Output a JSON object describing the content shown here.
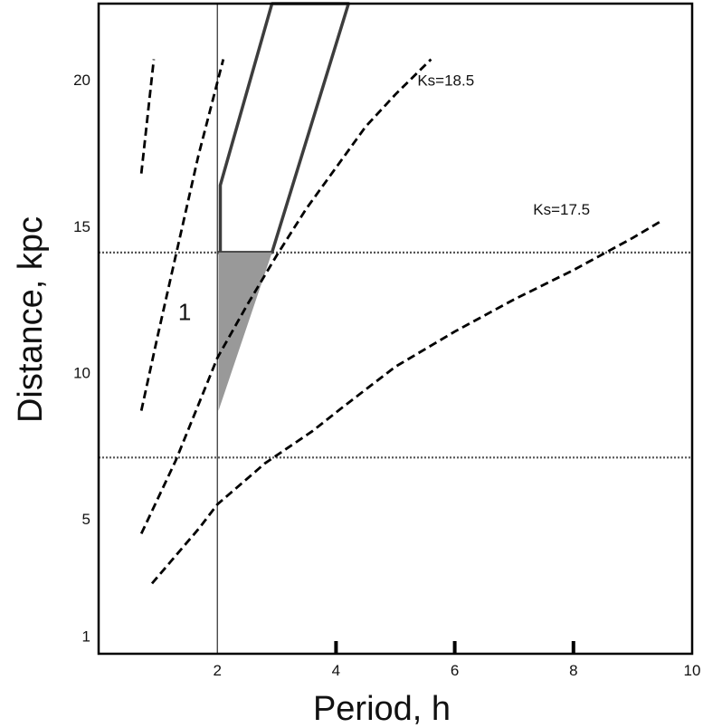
{
  "chart_data": {
    "type": "line",
    "xlabel": "Period, h",
    "ylabel": "Distance, kpc",
    "xlim": [
      0,
      10
    ],
    "ylim": [
      0.4,
      22.6
    ],
    "x_ticks": [
      {
        "value": 2,
        "label": "2",
        "tick_mark": false
      },
      {
        "value": 4,
        "label": "4",
        "tick_mark": true
      },
      {
        "value": 6,
        "label": "6",
        "tick_mark": true
      },
      {
        "value": 8,
        "label": "8",
        "tick_mark": true
      },
      {
        "value": 10,
        "label": "10",
        "tick_mark": false
      }
    ],
    "y_ticks": [
      {
        "value": 1,
        "label": "1"
      },
      {
        "value": 5,
        "label": "5"
      },
      {
        "value": 10,
        "label": "10"
      },
      {
        "value": 15,
        "label": "15"
      },
      {
        "value": 20,
        "label": "20"
      }
    ],
    "grid": false,
    "legend": "none",
    "reference_lines": [
      {
        "orientation": "vertical",
        "value": 2.0,
        "style": "solid-thin"
      },
      {
        "orientation": "horizontal",
        "value": 14.1,
        "style": "dotted"
      },
      {
        "orientation": "horizontal",
        "value": 7.1,
        "style": "dotted"
      }
    ],
    "series": [
      {
        "style": "dashed",
        "x": [
          0.72,
          0.93
        ],
        "y": [
          16.8,
          20.7
        ]
      },
      {
        "style": "dashed",
        "x": [
          0.72,
          1.0,
          1.3,
          1.68,
          2.1
        ],
        "y": [
          8.7,
          11.3,
          14.0,
          17.4,
          20.7
        ]
      },
      {
        "style": "dashed",
        "x": [
          0.72,
          1.3,
          1.8,
          2.0,
          2.5,
          3.0,
          3.5,
          4.0,
          4.5,
          5.0,
          5.6
        ],
        "y": [
          4.5,
          7.0,
          9.5,
          10.5,
          12.3,
          14.0,
          15.6,
          17.0,
          18.4,
          19.5,
          20.7
        ],
        "annotation": "Ks=18.5"
      },
      {
        "style": "dashed",
        "x": [
          0.9,
          1.7,
          2.0,
          2.8,
          3.6,
          4.1,
          5.0,
          6.0,
          7.0,
          8.0,
          9.0,
          9.5
        ],
        "y": [
          2.8,
          4.7,
          5.5,
          6.9,
          8.0,
          8.8,
          10.2,
          11.4,
          12.5,
          13.5,
          14.6,
          15.2
        ],
        "annotation": "Ks=17.5"
      }
    ],
    "regions": [
      {
        "style": "outline",
        "x": [
          2.05,
          2.05,
          2.92,
          4.21,
          2.92,
          2.02,
          2.05
        ],
        "y": [
          14.1,
          16.4,
          22.6,
          22.6,
          14.1,
          14.1,
          14.1
        ]
      },
      {
        "style": "shaded",
        "x": [
          2.02,
          2.92,
          2.02
        ],
        "y": [
          14.1,
          14.1,
          8.7
        ]
      }
    ],
    "annotations": [
      {
        "text": "Ks=18.5",
        "x": 5.85,
        "y": 19.8
      },
      {
        "text": "Ks=17.5",
        "x": 7.8,
        "y": 15.4
      },
      {
        "text": "1",
        "x": 1.45,
        "y": 11.8
      }
    ]
  }
}
